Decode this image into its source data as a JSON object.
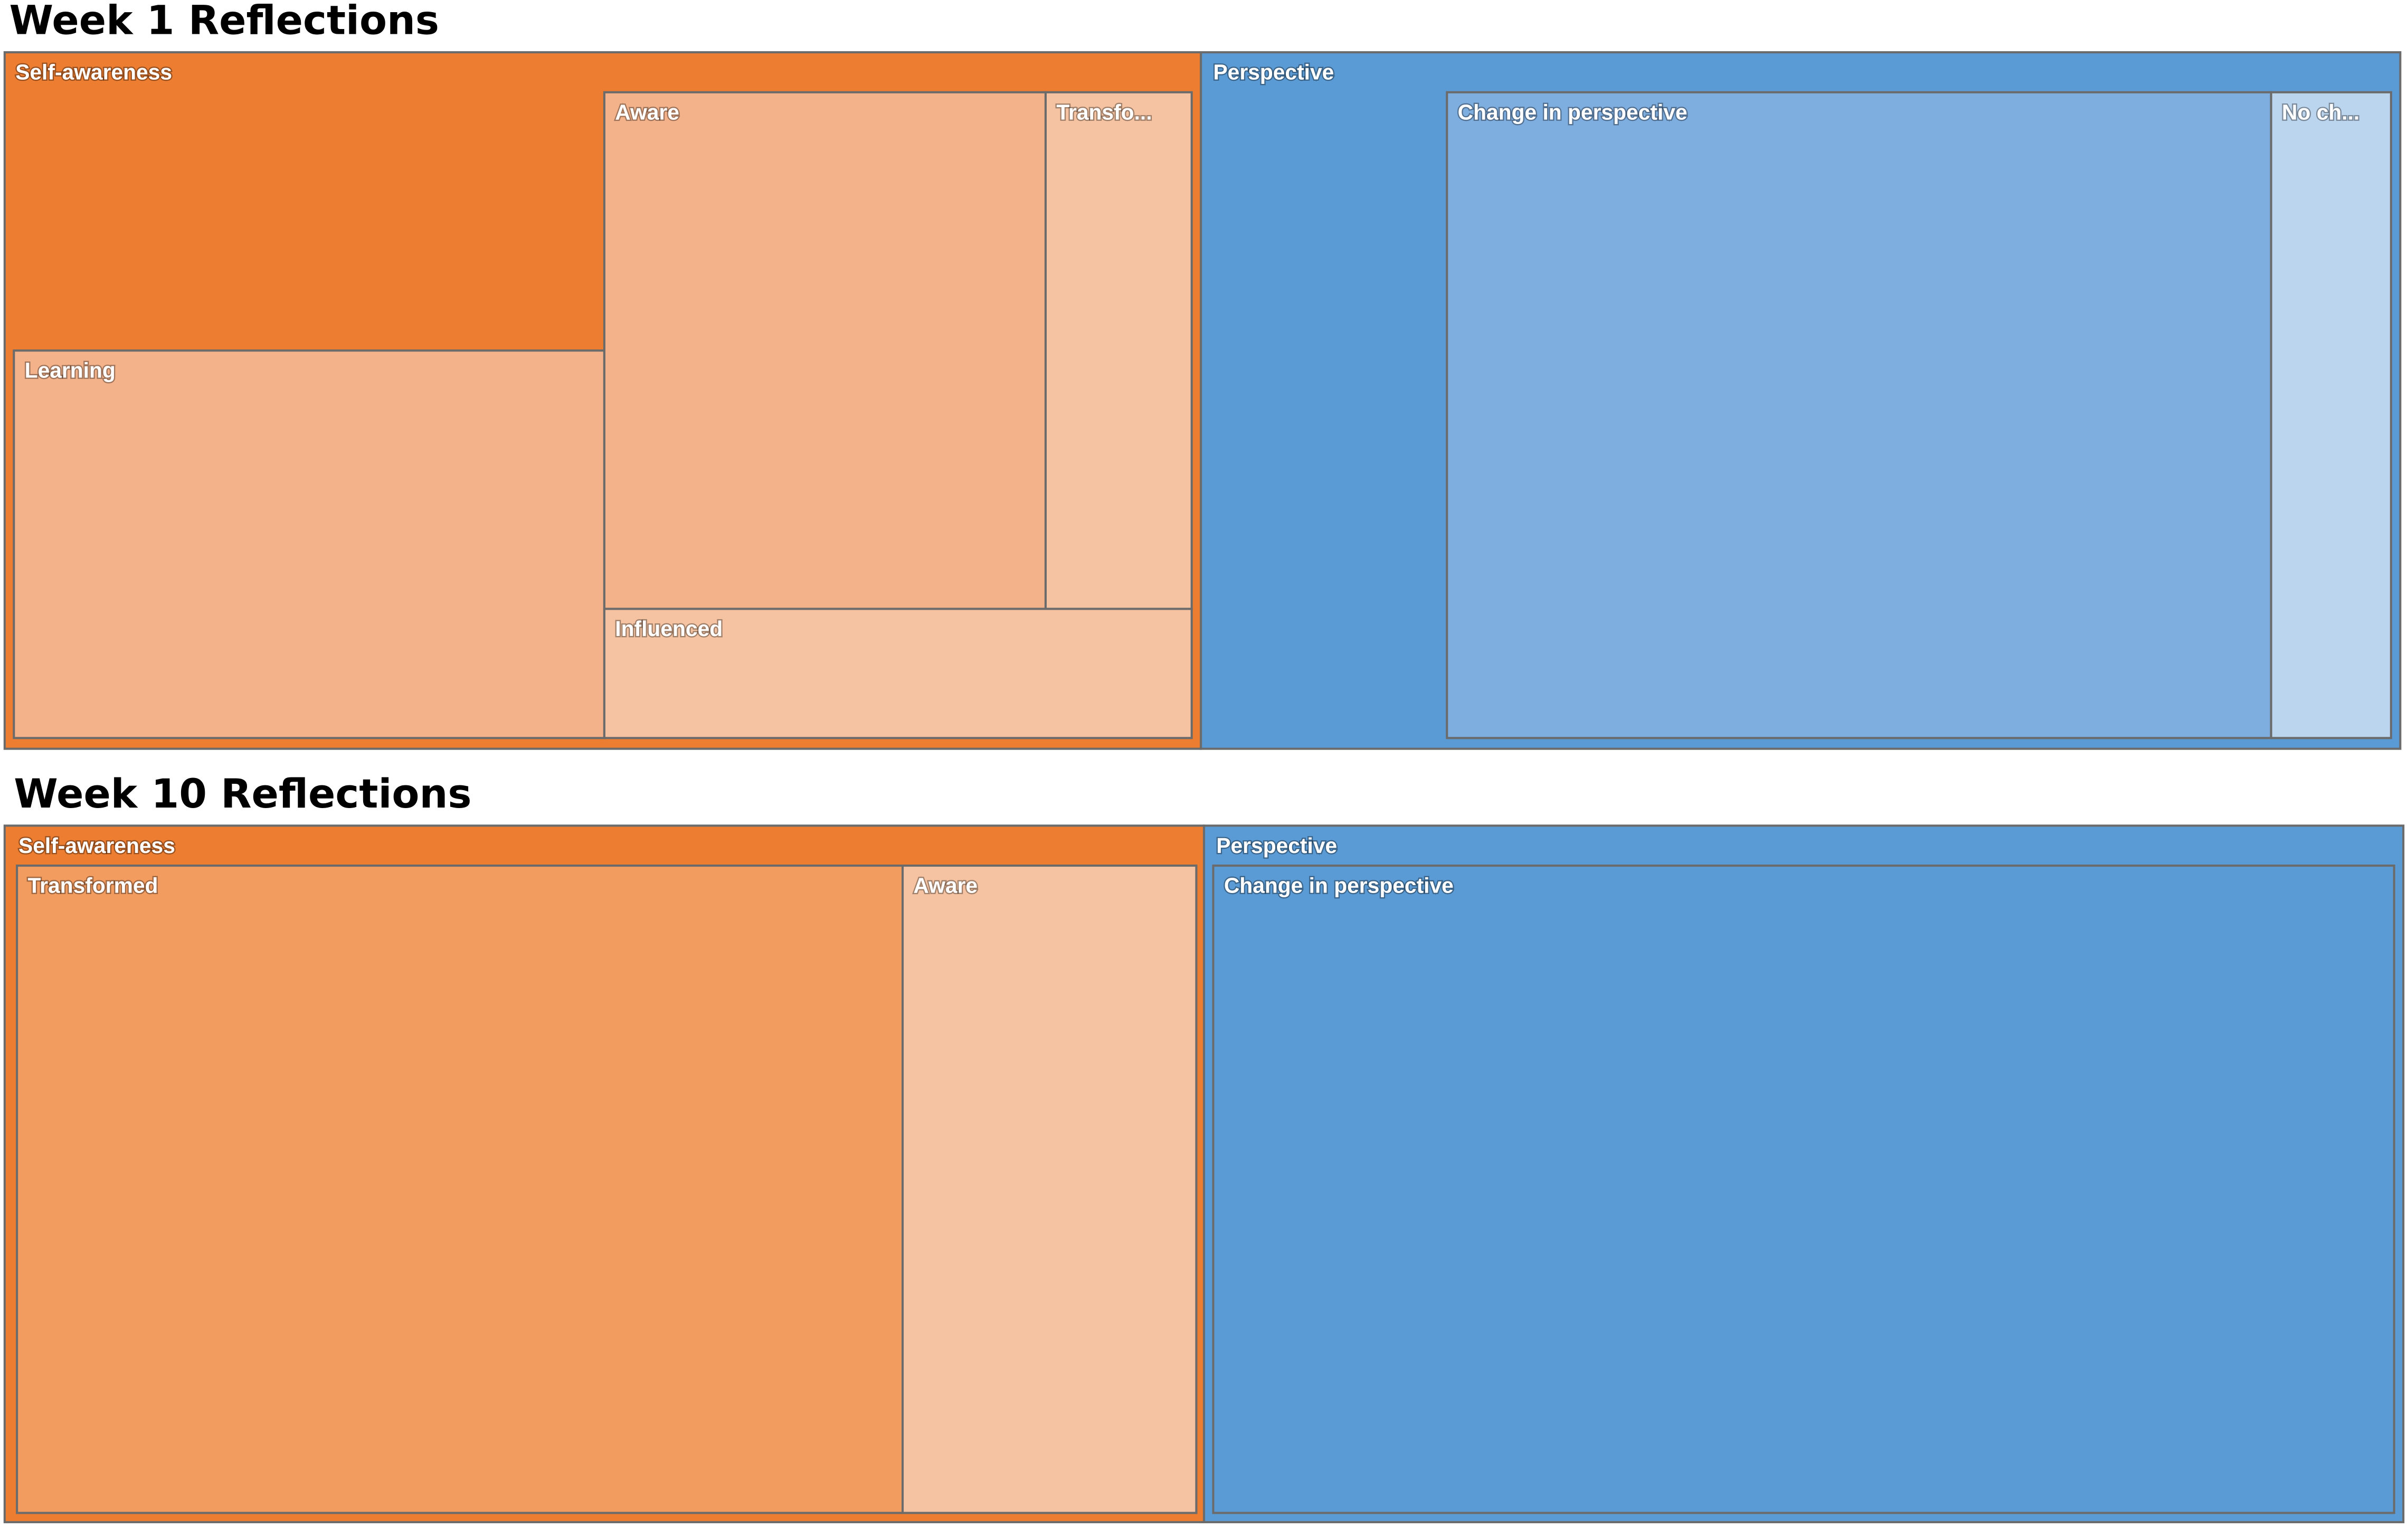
{
  "treemaps": [
    {
      "title": "Week 1 Reflections",
      "groups": [
        {
          "label": "Self-awareness",
          "color": "#ED7D31",
          "items": [
            {
              "label": "Learning",
              "color": "#F4B28A"
            },
            {
              "label": "Aware",
              "color": "#F4B28A"
            },
            {
              "label": "Transfo...",
              "color": "#F6C3A2"
            },
            {
              "label": "Influenced",
              "color": "#F6C3A2"
            }
          ]
        },
        {
          "label": "Perspective",
          "color": "#5B9BD5",
          "items": [
            {
              "label": "Change in perspective",
              "color": "#7EADDF"
            },
            {
              "label": "No ch...",
              "color": "#BCD5EE"
            }
          ]
        }
      ]
    },
    {
      "title": "Week 10 Reflections",
      "groups": [
        {
          "label": "Self-awareness",
          "color": "#ED7D31",
          "items": [
            {
              "label": "Transformed",
              "color": "#F39C60"
            },
            {
              "label": "Aware",
              "color": "#F6C3A2"
            }
          ]
        },
        {
          "label": "Perspective",
          "color": "#5B9BD5",
          "items": [
            {
              "label": "Change in perspective",
              "color": "#5B9BD5"
            }
          ]
        }
      ]
    }
  ]
}
